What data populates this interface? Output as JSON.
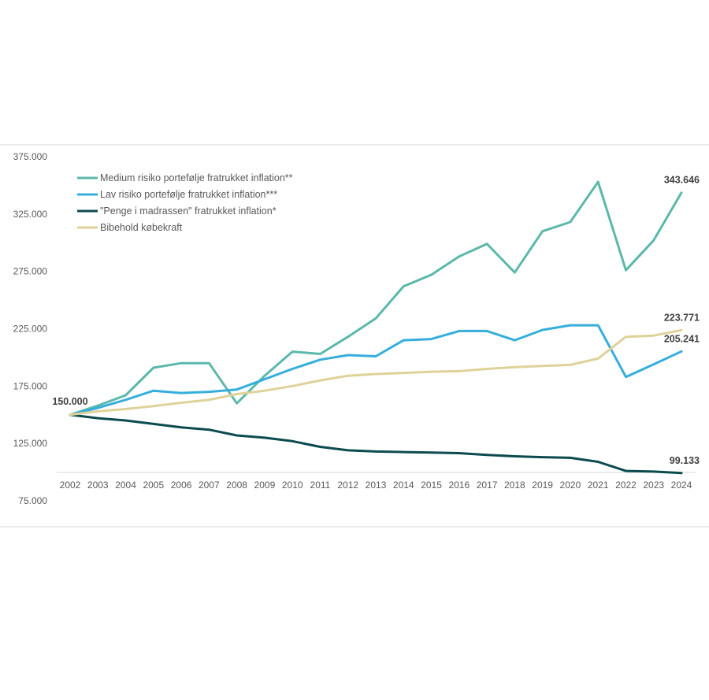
{
  "chart_data": {
    "type": "line",
    "title": "",
    "xlabel": "",
    "ylabel": "",
    "ylim": [
      75000,
      375000
    ],
    "yticks": [
      375000,
      325000,
      275000,
      225000,
      175000,
      125000,
      75000
    ],
    "ytick_labels": [
      "375.000",
      "325.000",
      "275.000",
      "225.000",
      "175.000",
      "125.000",
      "75.000"
    ],
    "categories": [
      "2002",
      "2003",
      "2004",
      "2005",
      "2006",
      "2007",
      "2008",
      "2009",
      "2010",
      "2011",
      "2012",
      "2013",
      "2014",
      "2015",
      "2016",
      "2017",
      "2018",
      "2019",
      "2020",
      "2021",
      "2022",
      "2023",
      "2024"
    ],
    "legend_position": "top-left",
    "grid": false,
    "series": [
      {
        "name": "Medium risiko portefølje fratrukket inflation**",
        "color": "#5BB8AB",
        "values": [
          150000,
          158000,
          167000,
          191000,
          195000,
          195000,
          160000,
          184000,
          205000,
          203000,
          218000,
          234000,
          262000,
          272000,
          288000,
          299000,
          274000,
          310000,
          318000,
          353000,
          276000,
          302000,
          343646
        ]
      },
      {
        "name": "Lav risiko portefølje fratrukket inflation***",
        "color": "#36AEDC",
        "values": [
          150000,
          156000,
          163000,
          171000,
          169000,
          170000,
          172000,
          181000,
          190000,
          198000,
          202000,
          201000,
          215000,
          216000,
          223000,
          223000,
          215000,
          224000,
          228000,
          228000,
          183000,
          194000,
          205241
        ]
      },
      {
        "name": "\"Penge i madrassen\" fratrukket inflation*",
        "color": "#0B4B4F",
        "values": [
          150000,
          147000,
          145000,
          142000,
          139000,
          137000,
          132000,
          130000,
          127000,
          122000,
          119000,
          118000,
          117500,
          117000,
          116500,
          115000,
          113800,
          113000,
          112500,
          109000,
          101000,
          100500,
          99133
        ]
      },
      {
        "name": "Bibehold købekraft",
        "color": "#DFD299",
        "values": [
          150000,
          153000,
          155000,
          157500,
          160500,
          163000,
          168000,
          171000,
          175000,
          180000,
          184000,
          185500,
          186500,
          187500,
          188000,
          190000,
          191500,
          192500,
          193500,
          199000,
          218000,
          219000,
          223771
        ]
      }
    ],
    "annotations": [
      {
        "label": "150.000",
        "series": 0,
        "index": 0
      },
      {
        "label": "343.646",
        "series": 0,
        "index": 22
      },
      {
        "label": "223.771",
        "series": 3,
        "index": 22
      },
      {
        "label": "205.241",
        "series": 1,
        "index": 22
      },
      {
        "label": "99.133",
        "series": 2,
        "index": 22
      }
    ]
  }
}
